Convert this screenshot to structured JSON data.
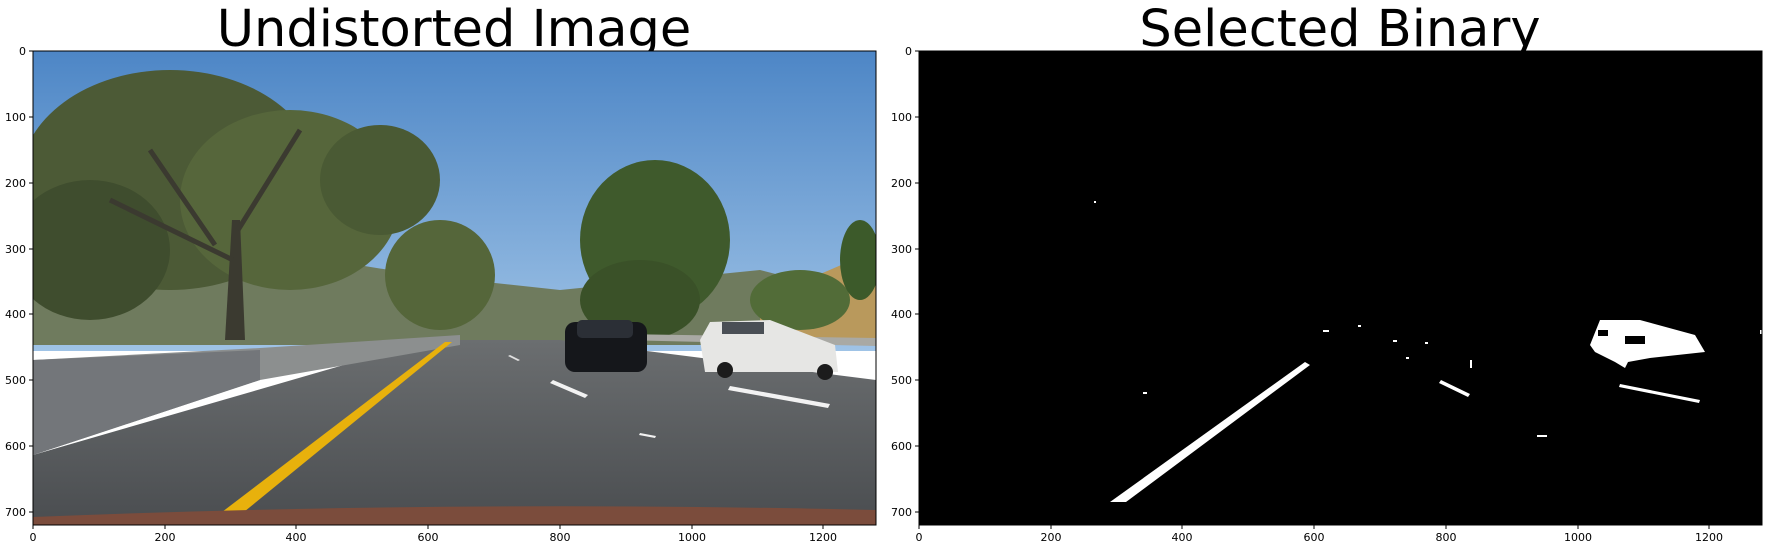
{
  "panels": [
    {
      "title": "Undistorted Image",
      "xticks": [
        0,
        200,
        400,
        600,
        800,
        1000,
        1200
      ],
      "yticks": [
        0,
        100,
        200,
        300,
        400,
        500,
        600,
        700
      ],
      "xlim": [
        0,
        1280
      ],
      "ylim": [
        720,
        0
      ]
    },
    {
      "title": "Selected Binary",
      "xticks": [
        0,
        200,
        400,
        600,
        800,
        1000,
        1200
      ],
      "yticks": [
        0,
        100,
        200,
        300,
        400,
        500,
        600,
        700
      ],
      "xlim": [
        0,
        1280
      ],
      "ylim": [
        720,
        0
      ]
    }
  ],
  "colors": {
    "sky": "#5b8fc8",
    "road": "#555a5e",
    "yellow_line": "#e8b10c",
    "binary_bg": "#000000",
    "binary_fg": "#ffffff"
  }
}
